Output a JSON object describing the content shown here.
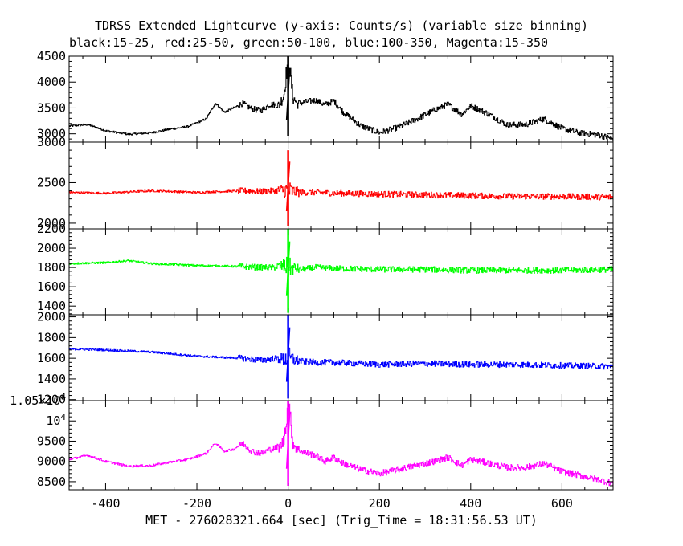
{
  "title": "TDRSS Extended Lightcurve (y-axis: Counts/s) (variable size binning)",
  "subtitle": "black:15-25, red:25-50, green:50-100, blue:100-350, Magenta:15-350",
  "xlabel": "MET - 276028321.664 [sec] (Trig_Time = 18:31:56.53 UT)",
  "chart_data": {
    "type": "line",
    "title": "TDRSS Extended Lightcurve (y-axis: Counts/s) (variable size binning)",
    "subtitle": "black:15-25, red:25-50, green:50-100, blue:100-350, Magenta:15-350",
    "xlabel": "MET - 276028321.664 [sec] (Trig_Time = 18:31:56.53 UT)",
    "ylabel": "Counts/s",
    "xlim": [
      -480,
      712
    ],
    "xticks": [
      -400,
      -200,
      0,
      200,
      400,
      600
    ],
    "grid": false,
    "panels": [
      {
        "series": "black:15-25",
        "color": "#000000",
        "ylim": [
          2840,
          4500
        ],
        "ytick_labels": [
          "3000",
          "3500",
          "4000",
          "4500"
        ],
        "ytick_values": [
          3000,
          3500,
          4000,
          4500
        ],
        "x": [
          -480,
          -440,
          -400,
          -350,
          -300,
          -260,
          -220,
          -180,
          -160,
          -140,
          -120,
          -100,
          -80,
          -60,
          -40,
          -20,
          -10,
          0,
          10,
          20,
          40,
          60,
          80,
          100,
          120,
          160,
          200,
          240,
          280,
          320,
          350,
          380,
          400,
          440,
          480,
          520,
          560,
          600,
          640,
          680,
          712
        ],
        "y": [
          3150,
          3180,
          3060,
          2990,
          3020,
          3090,
          3140,
          3290,
          3590,
          3420,
          3500,
          3590,
          3480,
          3450,
          3570,
          3550,
          3750,
          4500,
          3700,
          3580,
          3620,
          3650,
          3560,
          3640,
          3420,
          3150,
          3020,
          3120,
          3280,
          3460,
          3570,
          3380,
          3540,
          3380,
          3170,
          3180,
          3290,
          3100,
          3010,
          2980,
          2900
        ],
        "spike": {
          "x": 0,
          "ymin": 2960,
          "ymax": 4500
        }
      },
      {
        "series": "red:25-50",
        "color": "#ff0000",
        "ylim": [
          1930,
          3000
        ],
        "ytick_labels": [
          "2000",
          "2500",
          "3000"
        ],
        "ytick_values": [
          2000,
          2500,
          3000
        ],
        "x": [
          -480,
          -400,
          -300,
          -200,
          -100,
          -60,
          -30,
          -10,
          0,
          10,
          30,
          60,
          100,
          200,
          300,
          400,
          500,
          600,
          712
        ],
        "y": [
          2380,
          2370,
          2400,
          2380,
          2400,
          2390,
          2400,
          2410,
          2400,
          2390,
          2380,
          2380,
          2370,
          2360,
          2350,
          2340,
          2330,
          2330,
          2320
        ],
        "spike": {
          "x": 0,
          "ymin": 1960,
          "ymax": 2900
        }
      },
      {
        "series": "green:50-100",
        "color": "#00ff00",
        "ylim": [
          1310,
          2200
        ],
        "ytick_labels": [
          "1400",
          "1600",
          "1800",
          "2000",
          "2200"
        ],
        "ytick_values": [
          1400,
          1600,
          1800,
          2000,
          2200
        ],
        "x": [
          -480,
          -400,
          -350,
          -300,
          -200,
          -100,
          -60,
          -30,
          -10,
          0,
          10,
          30,
          60,
          100,
          200,
          300,
          400,
          500,
          600,
          712
        ],
        "y": [
          1840,
          1850,
          1870,
          1840,
          1820,
          1810,
          1800,
          1800,
          1820,
          1800,
          1790,
          1780,
          1800,
          1790,
          1780,
          1780,
          1770,
          1770,
          1770,
          1780
        ],
        "spike": {
          "x": 0,
          "ymin": 1330,
          "ymax": 2200
        }
      },
      {
        "series": "blue:100-350",
        "color": "#0000ff",
        "ylim": [
          1190,
          2020
        ],
        "ytick_labels": [
          "1200",
          "1400",
          "1600",
          "1800",
          "2000"
        ],
        "ytick_values": [
          1200,
          1400,
          1600,
          1800,
          2000
        ],
        "x": [
          -480,
          -400,
          -300,
          -200,
          -100,
          -60,
          -30,
          -10,
          0,
          10,
          30,
          60,
          100,
          200,
          300,
          400,
          500,
          600,
          712
        ],
        "y": [
          1690,
          1680,
          1660,
          1620,
          1600,
          1580,
          1600,
          1590,
          1600,
          1590,
          1570,
          1560,
          1560,
          1540,
          1550,
          1540,
          1540,
          1530,
          1520
        ],
        "spike": {
          "x": 0,
          "ymin": 1210,
          "ymax": 2020
        }
      },
      {
        "series": "Magenta:15-350",
        "color": "#ff00ff",
        "ylim": [
          8300,
          10500
        ],
        "ytick_labels": [
          "8500",
          "9000",
          "9500",
          "10^4",
          "1.05×10^4"
        ],
        "ytick_values": [
          8500,
          9000,
          9500,
          10000,
          10500
        ],
        "x": [
          -480,
          -440,
          -400,
          -350,
          -300,
          -260,
          -220,
          -180,
          -160,
          -140,
          -120,
          -100,
          -80,
          -60,
          -40,
          -20,
          -10,
          0,
          10,
          20,
          40,
          60,
          80,
          100,
          120,
          160,
          200,
          240,
          280,
          320,
          350,
          380,
          400,
          440,
          480,
          520,
          560,
          600,
          640,
          680,
          712
        ],
        "y": [
          9050,
          9150,
          9000,
          8880,
          8900,
          8980,
          9050,
          9200,
          9450,
          9250,
          9300,
          9450,
          9250,
          9200,
          9300,
          9350,
          9500,
          10500,
          9450,
          9300,
          9200,
          9150,
          9000,
          9100,
          8950,
          8800,
          8700,
          8800,
          8900,
          9000,
          9100,
          8900,
          9050,
          8950,
          8850,
          8850,
          8950,
          8750,
          8650,
          8550,
          8450
        ],
        "spike": {
          "x": 0,
          "ymin": 8400,
          "ymax": 10500
        }
      }
    ]
  }
}
